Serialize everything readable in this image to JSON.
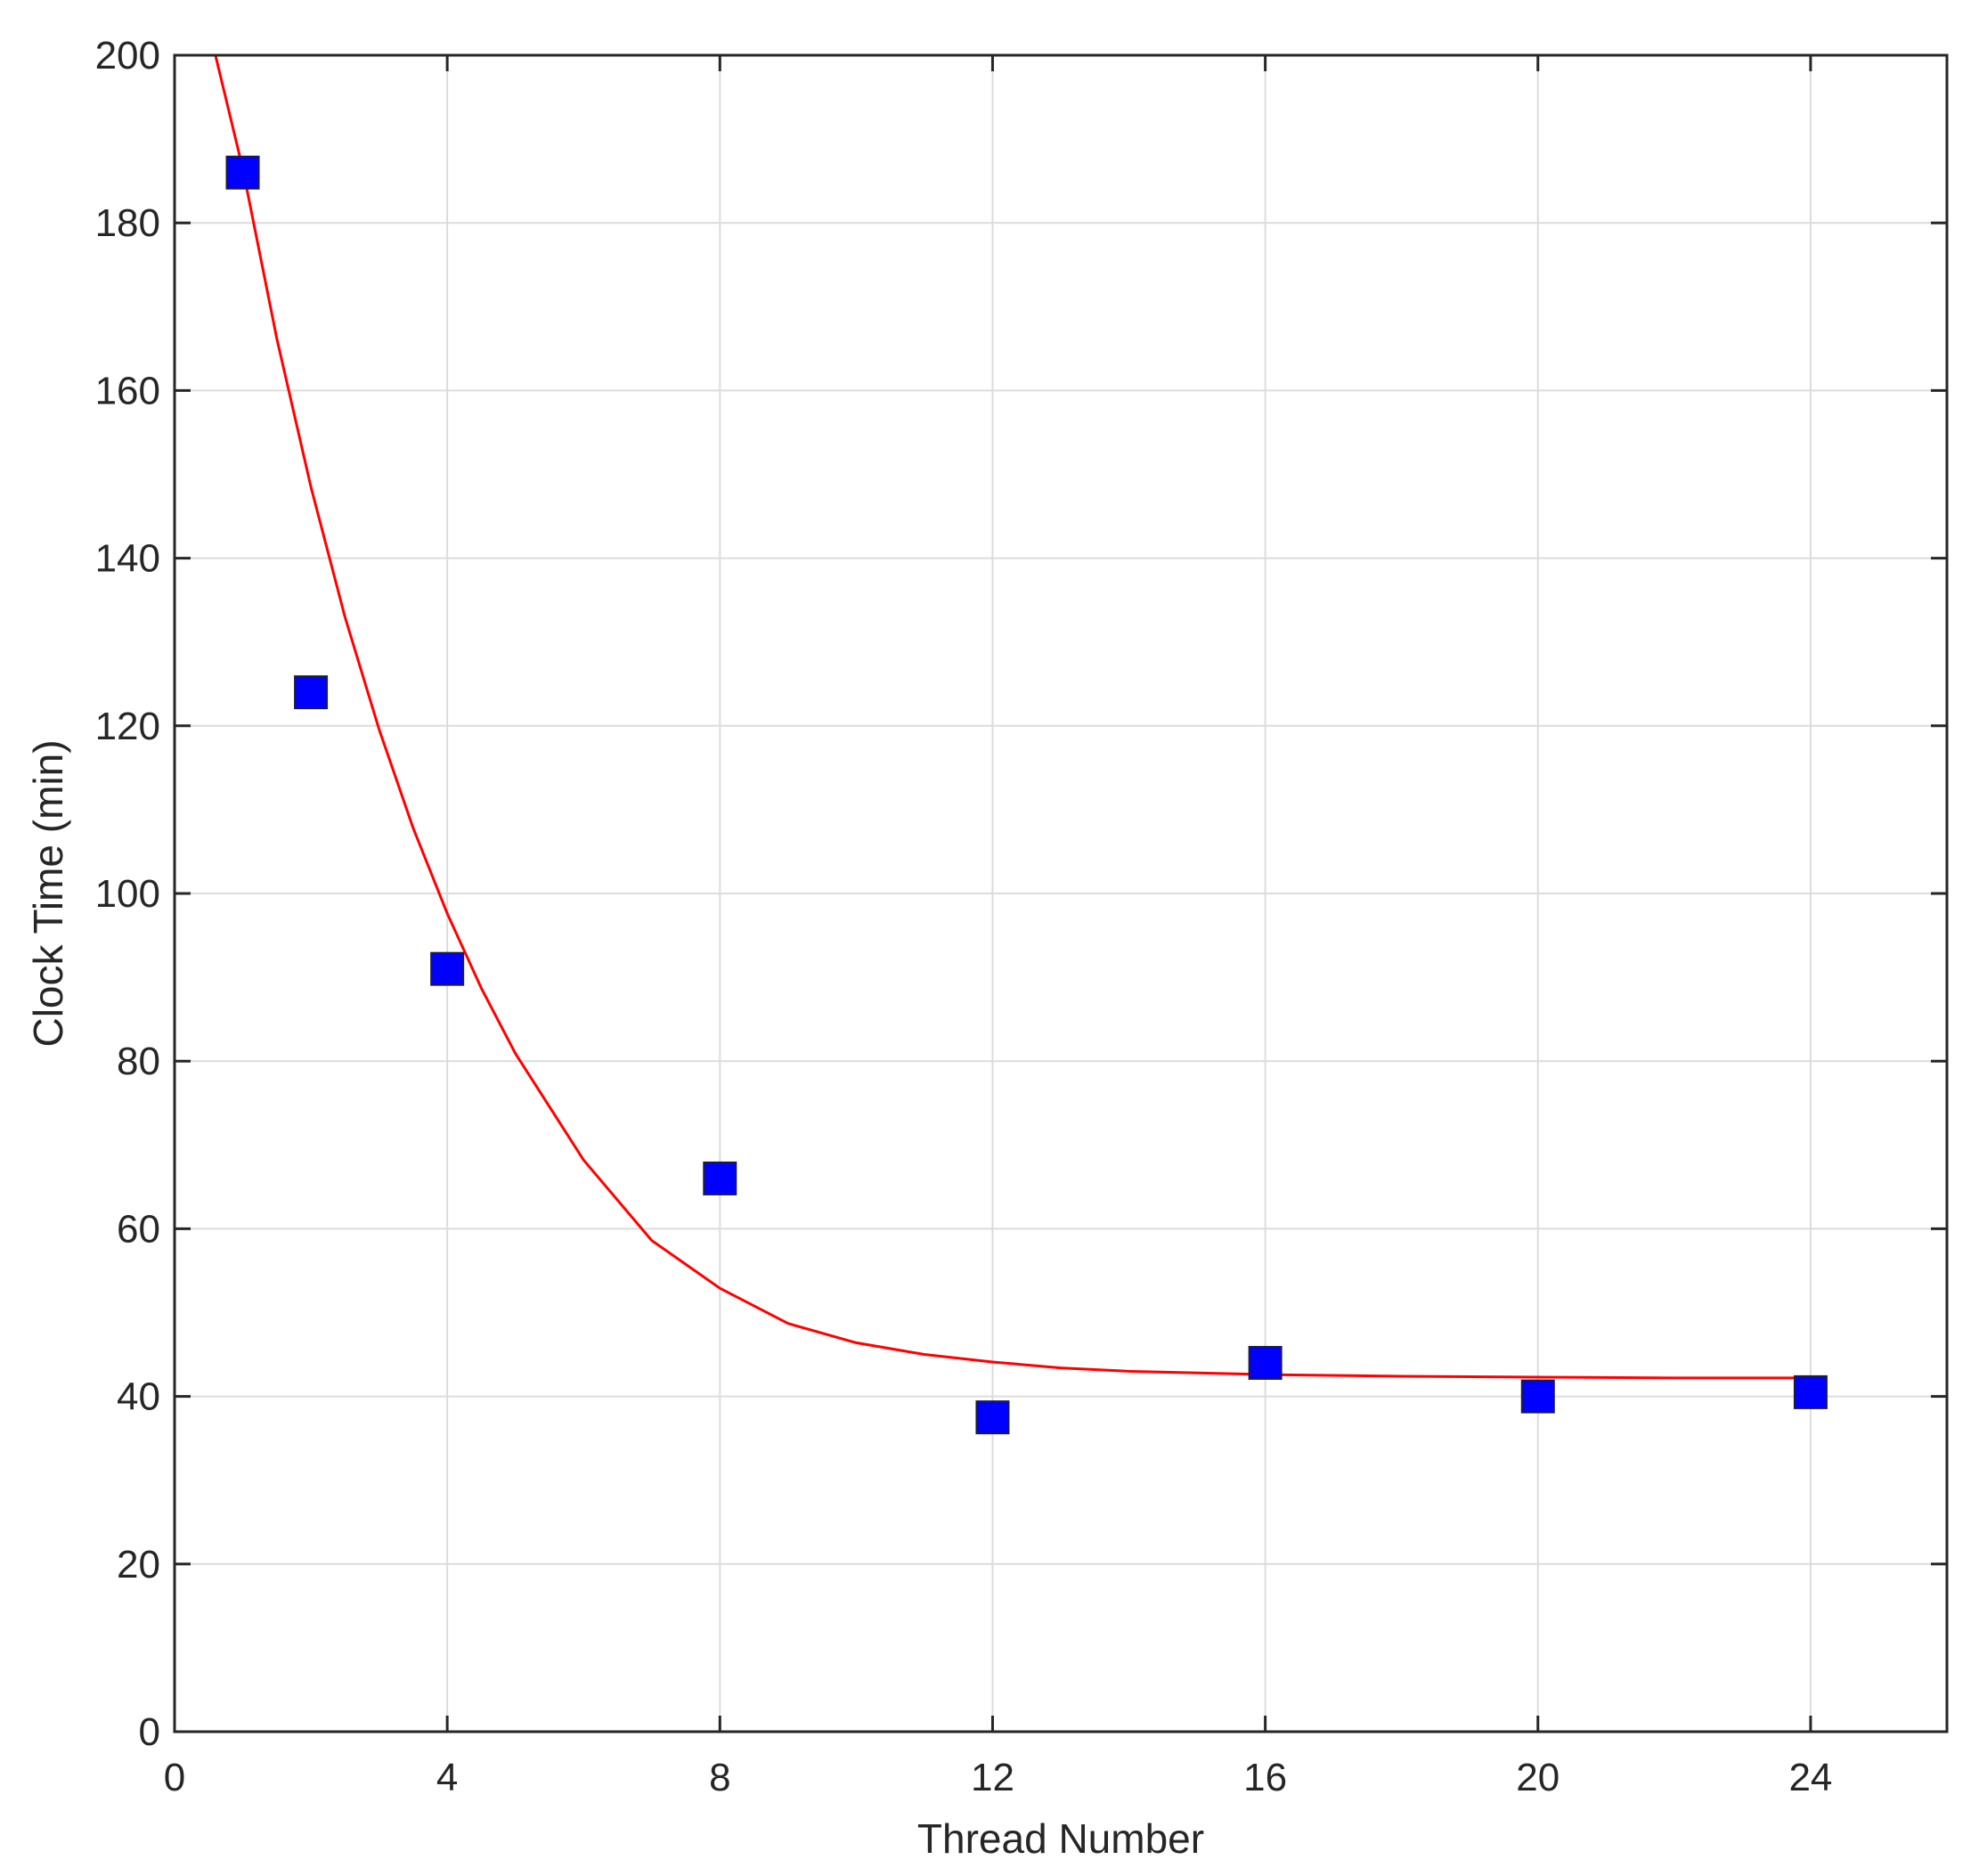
{
  "chart_data": {
    "type": "scatter",
    "title": "",
    "xlabel": "Thread Number",
    "ylabel": "Clock Time (min)",
    "xlim": [
      0,
      26
    ],
    "ylim": [
      0,
      200
    ],
    "xticks": [
      0,
      4,
      8,
      12,
      16,
      20,
      24
    ],
    "yticks": [
      0,
      20,
      40,
      60,
      80,
      100,
      120,
      140,
      160,
      180,
      200
    ],
    "grid": true,
    "legend": "none",
    "series": [
      {
        "type": "scatter",
        "marker": "square",
        "color": "#0000ff",
        "x": [
          1,
          2,
          4,
          8,
          12,
          16,
          20,
          24
        ],
        "y": [
          186,
          124,
          91,
          66,
          37.5,
          44,
          40,
          40.5
        ]
      },
      {
        "type": "line",
        "color": "#ff0000",
        "x": [
          0.6,
          1,
          1.5,
          2,
          2.5,
          3,
          3.5,
          4,
          4.5,
          5,
          6,
          7,
          8,
          9,
          10,
          11,
          12,
          13,
          14,
          16,
          18,
          20,
          22,
          24
        ],
        "y": [
          200,
          186.5,
          166.2,
          148.5,
          133,
          119.6,
          107.8,
          97.6,
          88.7,
          80.9,
          68.2,
          58.6,
          52.9,
          48.7,
          46.4,
          45.0,
          44.1,
          43.4,
          43.0,
          42.6,
          42.4,
          42.3,
          42.2,
          42.2
        ]
      }
    ]
  }
}
